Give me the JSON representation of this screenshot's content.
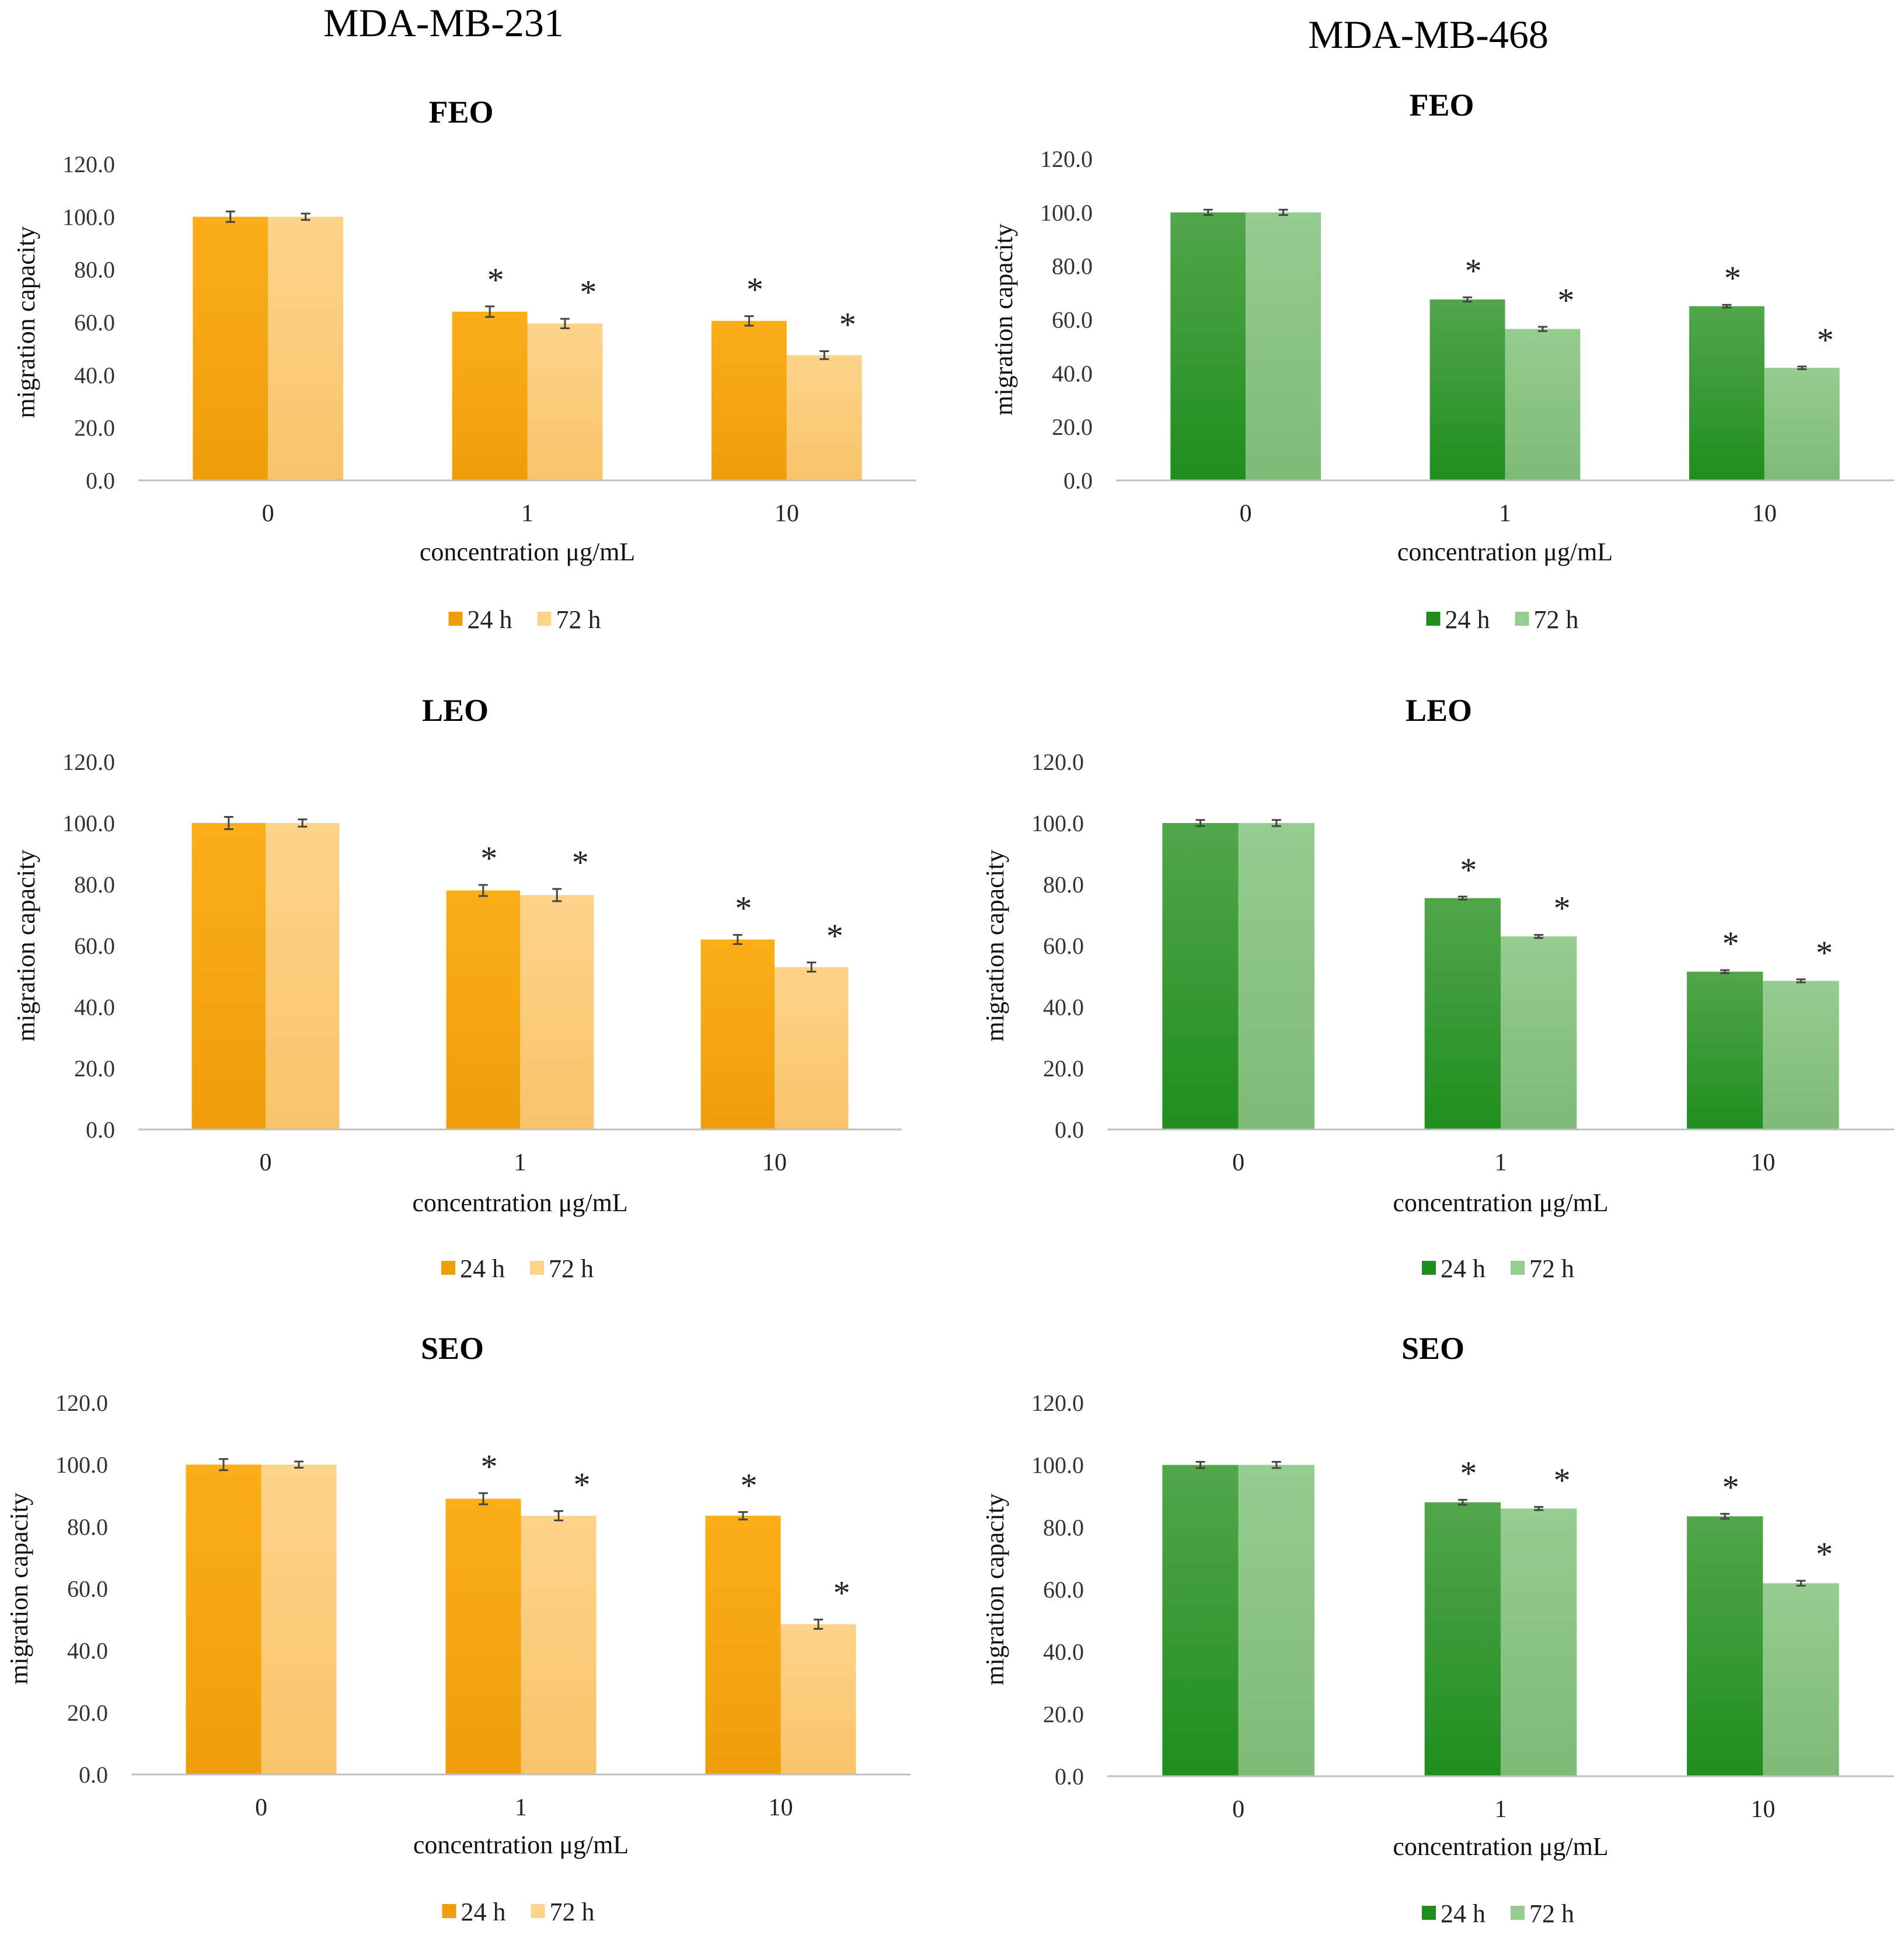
{
  "column_titles": {
    "left": "MDA-MB-231",
    "right": "MDA-MB-468"
  },
  "colors": {
    "orange_24h_top": "#FBAE17",
    "orange_24h_bottom": "#EE9E0A",
    "orange_72h_top": "#FDD38A",
    "orange_72h_bottom": "#F8C46A",
    "green_24h_top": "#52A64A",
    "green_24h_bottom": "#1F8E1F",
    "green_72h_top": "#96CC90",
    "green_72h_bottom": "#7DBB77",
    "error_bar": "#444444",
    "axis": "#BFBFBF"
  },
  "chart_data": [
    {
      "id": "feo-231",
      "type": "bar",
      "title": "FEO",
      "palette": "orange",
      "xlabel": "concentration μg/mL",
      "ylabel": "migration capacity",
      "ylim": [
        0,
        120
      ],
      "yticks": [
        "0.0",
        "20.0",
        "40.0",
        "60.0",
        "80.0",
        "100.0",
        "120.0"
      ],
      "categories": [
        "0",
        "1",
        "10"
      ],
      "series": [
        {
          "name": "24 h",
          "values": [
            100.0,
            64.0,
            60.5
          ],
          "errors": [
            2.0,
            2.0,
            1.8
          ],
          "significant": [
            false,
            true,
            true
          ]
        },
        {
          "name": "72 h",
          "values": [
            100.0,
            59.5,
            47.5
          ],
          "errors": [
            1.2,
            1.8,
            1.5
          ],
          "significant": [
            false,
            true,
            true
          ]
        }
      ],
      "significance_marker": "*"
    },
    {
      "id": "feo-468",
      "type": "bar",
      "title": "FEO",
      "palette": "green",
      "xlabel": "concentration μg/mL",
      "ylabel": "migration capacity",
      "ylim": [
        0,
        120
      ],
      "yticks": [
        "0.0",
        "20.0",
        "40.0",
        "60.0",
        "80.0",
        "100.0",
        "120.0"
      ],
      "categories": [
        "0",
        "1",
        "10"
      ],
      "series": [
        {
          "name": "24 h",
          "values": [
            100.0,
            67.5,
            65.0
          ],
          "errors": [
            1.0,
            0.8,
            0.5
          ],
          "significant": [
            false,
            true,
            true
          ]
        },
        {
          "name": "72 h",
          "values": [
            100.0,
            56.5,
            42.0
          ],
          "errors": [
            1.0,
            0.8,
            0.5
          ],
          "significant": [
            false,
            true,
            true
          ]
        }
      ],
      "significance_marker": "*"
    },
    {
      "id": "leo-231",
      "type": "bar",
      "title": "LEO",
      "palette": "orange",
      "xlabel": "concentration μg/mL",
      "ylabel": "migration capacity",
      "ylim": [
        0,
        120
      ],
      "yticks": [
        "0.0",
        "20.0",
        "40.0",
        "60.0",
        "80.0",
        "100.0",
        "120.0"
      ],
      "categories": [
        "0",
        "1",
        "10"
      ],
      "series": [
        {
          "name": "24 h",
          "values": [
            100.0,
            78.0,
            62.0
          ],
          "errors": [
            2.0,
            1.8,
            1.5
          ],
          "significant": [
            false,
            true,
            true
          ]
        },
        {
          "name": "72 h",
          "values": [
            100.0,
            76.5,
            53.0
          ],
          "errors": [
            1.2,
            2.0,
            1.5
          ],
          "significant": [
            false,
            true,
            true
          ]
        }
      ],
      "significance_marker": "*"
    },
    {
      "id": "leo-468",
      "type": "bar",
      "title": "LEO",
      "palette": "green",
      "xlabel": "concentration μg/mL",
      "ylabel": "migration capacity",
      "ylim": [
        0,
        120
      ],
      "yticks": [
        "0.0",
        "20.0",
        "40.0",
        "60.0",
        "80.0",
        "100.0",
        "120.0"
      ],
      "categories": [
        "0",
        "1",
        "10"
      ],
      "series": [
        {
          "name": "24 h",
          "values": [
            100.0,
            75.5,
            51.5
          ],
          "errors": [
            1.0,
            0.5,
            0.5
          ],
          "significant": [
            false,
            true,
            true
          ]
        },
        {
          "name": "72 h",
          "values": [
            100.0,
            63.0,
            48.5
          ],
          "errors": [
            1.0,
            0.5,
            0.5
          ],
          "significant": [
            false,
            true,
            true
          ]
        }
      ],
      "significance_marker": "*"
    },
    {
      "id": "seo-231",
      "type": "bar",
      "title": "SEO",
      "palette": "orange",
      "xlabel": "concentration μg/mL",
      "ylabel": "migration capacity",
      "ylim": [
        0,
        120
      ],
      "yticks": [
        "0.0",
        "20.0",
        "40.0",
        "60.0",
        "80.0",
        "100.0",
        "120.0"
      ],
      "categories": [
        "0",
        "1",
        "10"
      ],
      "series": [
        {
          "name": "24 h",
          "values": [
            100.0,
            89.0,
            83.5
          ],
          "errors": [
            1.8,
            1.8,
            1.2
          ],
          "significant": [
            false,
            true,
            true
          ]
        },
        {
          "name": "72 h",
          "values": [
            100.0,
            83.5,
            48.5
          ],
          "errors": [
            1.0,
            1.5,
            1.5
          ],
          "significant": [
            false,
            true,
            true
          ]
        }
      ],
      "significance_marker": "*"
    },
    {
      "id": "seo-468",
      "type": "bar",
      "title": "SEO",
      "palette": "green",
      "xlabel": "concentration μg/mL",
      "ylabel": "migration capacity",
      "ylim": [
        0,
        120
      ],
      "yticks": [
        "0.0",
        "20.0",
        "40.0",
        "60.0",
        "80.0",
        "100.0",
        "120.0"
      ],
      "categories": [
        "0",
        "1",
        "10"
      ],
      "series": [
        {
          "name": "24 h",
          "values": [
            100.0,
            88.0,
            83.5
          ],
          "errors": [
            1.0,
            0.8,
            0.8
          ],
          "significant": [
            false,
            true,
            true
          ]
        },
        {
          "name": "72 h",
          "values": [
            100.0,
            86.0,
            62.0
          ],
          "errors": [
            1.0,
            0.5,
            0.8
          ],
          "significant": [
            false,
            true,
            true
          ]
        }
      ],
      "significance_marker": "*"
    }
  ]
}
